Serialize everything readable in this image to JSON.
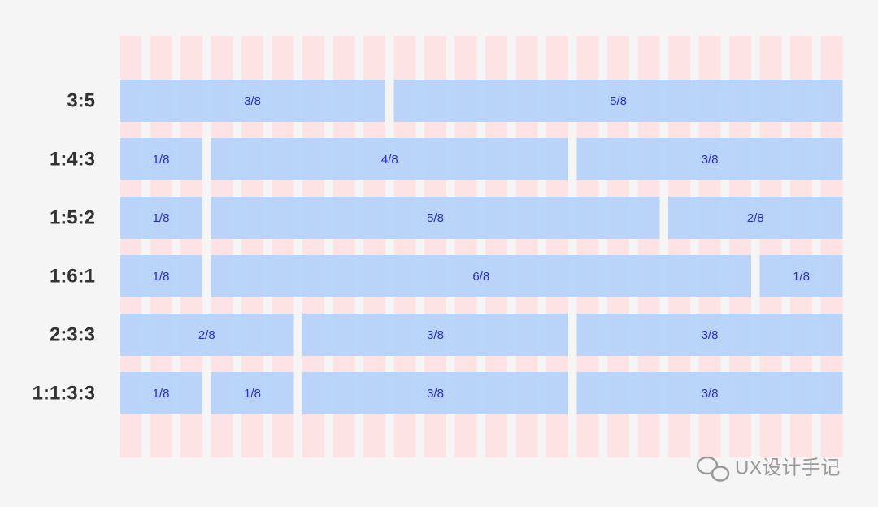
{
  "rows": [
    {
      "label": "3:5",
      "cells": [
        "3/8",
        "5/8"
      ]
    },
    {
      "label": "1:4:3",
      "cells": [
        "1/8",
        "4/8",
        "3/8"
      ]
    },
    {
      "label": "1:5:2",
      "cells": [
        "1/8",
        "5/8",
        "2/8"
      ]
    },
    {
      "label": "1:6:1",
      "cells": [
        "1/8",
        "6/8",
        "1/8"
      ]
    },
    {
      "label": "2:3:3",
      "cells": [
        "2/8",
        "3/8",
        "3/8"
      ]
    },
    {
      "label": "1:1:3:3",
      "cells": [
        "1/8",
        "1/8",
        "3/8",
        "3/8"
      ]
    }
  ],
  "watermark": "UX设计手记"
}
